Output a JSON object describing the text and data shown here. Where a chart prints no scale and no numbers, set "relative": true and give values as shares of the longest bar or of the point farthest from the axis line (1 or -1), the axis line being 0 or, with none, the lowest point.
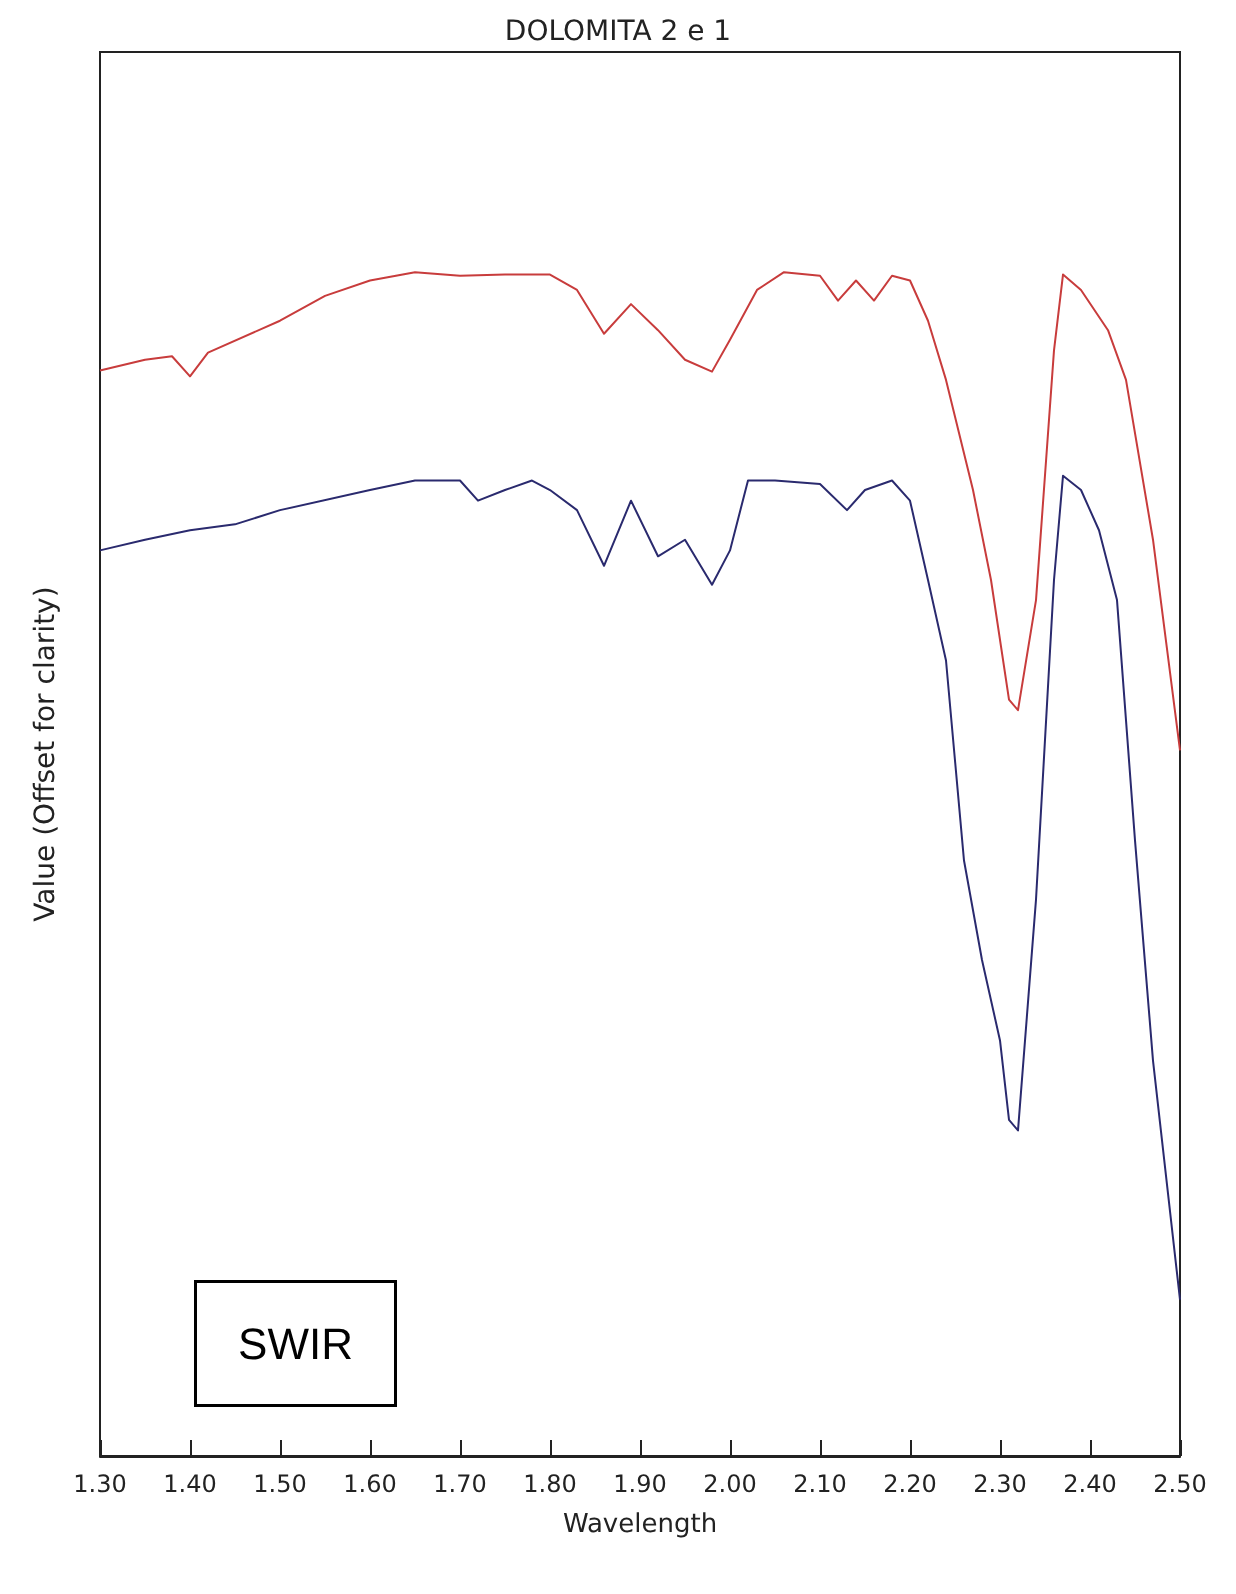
{
  "chart_data": {
    "type": "line",
    "title": "DOLOMITA 2 e 1",
    "xlabel": "Wavelength",
    "ylabel": "Value (Offset for clarity)",
    "relative": true,
    "xlim": [
      1.3,
      2.5
    ],
    "xticks": [
      {
        "value": 1.3,
        "label": "1.30"
      },
      {
        "value": 1.4,
        "label": "1.40"
      },
      {
        "value": 1.5,
        "label": "1.50"
      },
      {
        "value": 1.6,
        "label": "1.60"
      },
      {
        "value": 1.7,
        "label": "1.70"
      },
      {
        "value": 1.8,
        "label": "1.80"
      },
      {
        "value": 1.9,
        "label": "1.90"
      },
      {
        "value": 2.0,
        "label": "2.00"
      },
      {
        "value": 2.1,
        "label": "2.10"
      },
      {
        "value": 2.2,
        "label": "2.20"
      },
      {
        "value": 2.3,
        "label": "2.30"
      },
      {
        "value": 2.4,
        "label": "2.40"
      },
      {
        "value": 2.5,
        "label": "2.50"
      }
    ],
    "tick_labels": "x",
    "annotations": [
      "SWIR"
    ],
    "series": [
      {
        "color": "#c83c3c",
        "x": [
          1.3,
          1.35,
          1.38,
          1.4,
          1.42,
          1.5,
          1.55,
          1.6,
          1.65,
          1.7,
          1.75,
          1.8,
          1.83,
          1.86,
          1.89,
          1.92,
          1.95,
          1.98,
          2.0,
          2.03,
          2.06,
          2.1,
          2.12,
          2.14,
          2.16,
          2.18,
          2.2,
          2.22,
          2.24,
          2.27,
          2.29,
          2.31,
          2.32,
          2.34,
          2.36,
          2.37,
          2.39,
          2.42,
          2.44,
          2.47,
          2.5
        ],
        "values": [
          0.917,
          0.926,
          0.929,
          0.912,
          0.932,
          0.959,
          0.98,
          0.993,
          1.0,
          0.997,
          0.998,
          0.998,
          0.985,
          0.948,
          0.973,
          0.951,
          0.926,
          0.916,
          0.943,
          0.985,
          1.0,
          0.997,
          0.976,
          0.993,
          0.976,
          0.997,
          0.993,
          0.959,
          0.909,
          0.816,
          0.74,
          0.639,
          0.63,
          0.723,
          0.934,
          0.998,
          0.985,
          0.951,
          0.909,
          0.774,
          0.596
        ]
      },
      {
        "color": "#2a2a6e",
        "x": [
          1.3,
          1.35,
          1.4,
          1.45,
          1.5,
          1.6,
          1.65,
          1.7,
          1.72,
          1.75,
          1.78,
          1.8,
          1.83,
          1.86,
          1.89,
          1.92,
          1.95,
          1.98,
          2.0,
          2.02,
          2.05,
          2.1,
          2.13,
          2.15,
          2.18,
          2.2,
          2.22,
          2.24,
          2.26,
          2.28,
          2.3,
          2.31,
          2.32,
          2.34,
          2.36,
          2.37,
          2.39,
          2.41,
          2.43,
          2.45,
          2.47,
          2.5
        ],
        "values": [
          0.765,
          0.774,
          0.782,
          0.787,
          0.799,
          0.816,
          0.824,
          0.824,
          0.807,
          0.816,
          0.824,
          0.816,
          0.799,
          0.752,
          0.807,
          0.76,
          0.774,
          0.736,
          0.765,
          0.824,
          0.824,
          0.821,
          0.799,
          0.816,
          0.824,
          0.807,
          0.74,
          0.672,
          0.503,
          0.419,
          0.351,
          0.284,
          0.275,
          0.47,
          0.74,
          0.828,
          0.816,
          0.782,
          0.723,
          0.52,
          0.334,
          0.132
        ]
      }
    ]
  }
}
